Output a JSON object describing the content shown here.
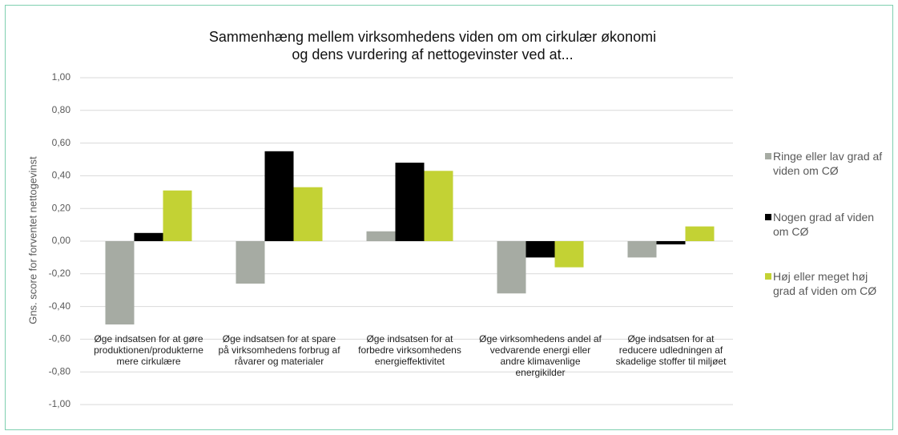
{
  "chart_data": {
    "type": "bar",
    "title": [
      "Sammenhæng mellem virksomhedens viden om om cirkulær økonomi",
      "og dens vurdering af nettogevinster ved at..."
    ],
    "y_label": "Gns. score for forventet nettogevinst",
    "categories": [
      "Øge indsatsen for at gøre produktionen/produkterne mere cirkulære",
      "Øge indsatsen for at spare på virksomhedens forbrug af råvarer og materialer",
      "Øge indsatsen for at forbedre virksomhedens energieffektivitet",
      "Øge  virksomhedens andel af vedvarende energi eller andre klimavenlige energikilder",
      "Øge indsatsen for at reducere udledningen af skadelige stoffer til miljøet"
    ],
    "series": [
      {
        "name": "Ringe eller lav grad af viden om CØ",
        "color": "#a6aba3",
        "values": [
          -0.51,
          -0.26,
          0.06,
          -0.32,
          -0.1
        ]
      },
      {
        "name": "Nogen grad af viden om CØ",
        "color": "#000000",
        "values": [
          0.05,
          0.55,
          0.48,
          -0.1,
          -0.02
        ]
      },
      {
        "name": "Høj eller meget høj grad af viden om CØ",
        "color": "#c3d234",
        "values": [
          0.31,
          0.33,
          0.43,
          -0.16,
          0.09
        ]
      }
    ],
    "ylim": [
      -1,
      1
    ],
    "yticks": [
      {
        "value": -1,
        "label": "-1,00"
      },
      {
        "value": -0.8,
        "label": "-0,80"
      },
      {
        "value": -0.6,
        "label": "-0,60"
      },
      {
        "value": -0.4,
        "label": "-0,40"
      },
      {
        "value": -0.2,
        "label": "-0,20"
      },
      {
        "value": 0,
        "label": "0,00"
      },
      {
        "value": 0.2,
        "label": "0,20"
      },
      {
        "value": 0.4,
        "label": "0,40"
      },
      {
        "value": 0.6,
        "label": "0,60"
      },
      {
        "value": 0.8,
        "label": "0,80"
      },
      {
        "value": 1,
        "label": "1,00"
      }
    ],
    "grid": true,
    "legend": "right"
  }
}
